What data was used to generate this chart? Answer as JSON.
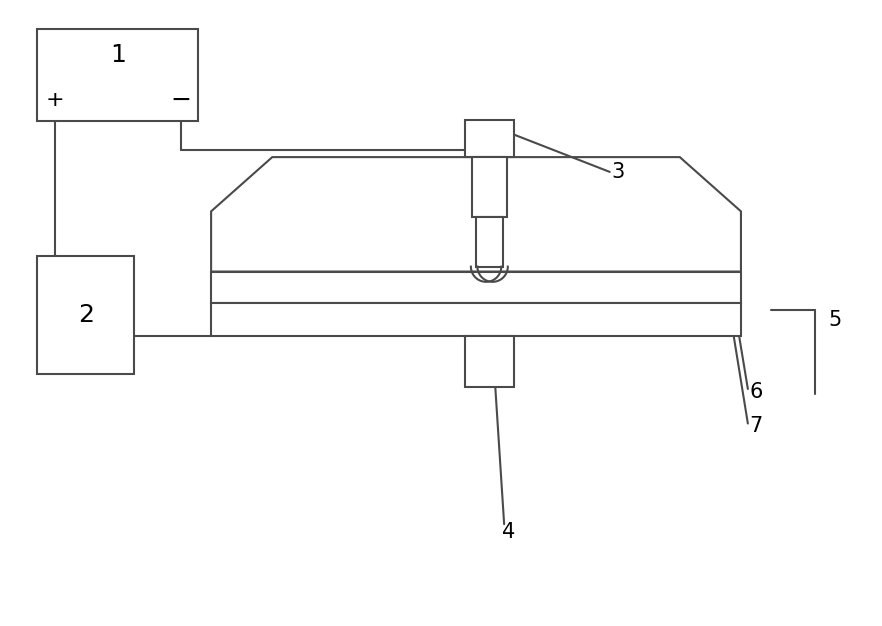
{
  "bg_color": "#ffffff",
  "line_color": "#4a4a4a",
  "line_width": 1.5,
  "fig_width": 8.82,
  "fig_height": 6.26,
  "dpi": 100
}
